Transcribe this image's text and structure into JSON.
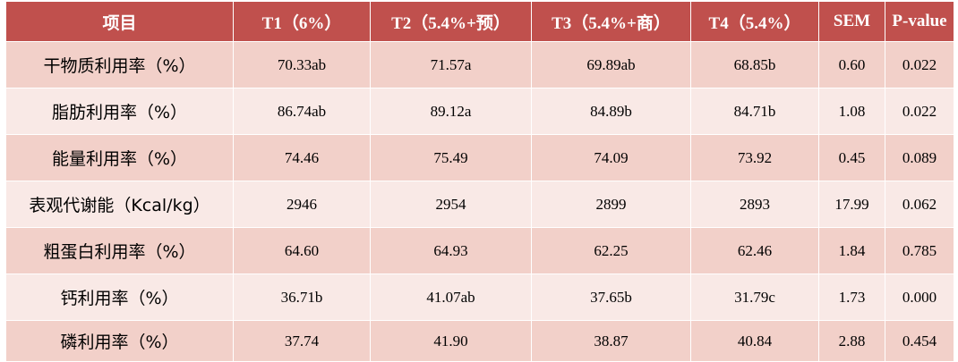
{
  "table": {
    "headers": [
      "项目",
      "T1（6%）",
      "T2（5.4%+预）",
      "T3（5.4%+商）",
      "T4（5.4%）",
      "SEM",
      "P-value"
    ],
    "rows": [
      [
        "干物质利用率（%）",
        "70.33ab",
        "71.57a",
        "69.89ab",
        "68.85b",
        "0.60",
        "0.022"
      ],
      [
        "脂肪利用率（%）",
        "86.74ab",
        "89.12a",
        "84.89b",
        "84.71b",
        "1.08",
        "0.022"
      ],
      [
        "能量利用率（%）",
        "74.46",
        "75.49",
        "74.09",
        "73.92",
        "0.45",
        "0.089"
      ],
      [
        "表观代谢能（Kcal/kg）",
        "2946",
        "2954",
        "2899",
        "2893",
        "17.99",
        "0.062"
      ],
      [
        "粗蛋白利用率（%）",
        "64.60",
        "64.93",
        "62.25",
        "62.46",
        "1.84",
        "0.785"
      ],
      [
        "钙利用率（%）",
        "36.71b",
        "41.07ab",
        "37.65b",
        "31.79c",
        "1.73",
        "0.000"
      ],
      [
        "磷利用率（%）",
        "37.74",
        "41.90",
        "38.87",
        "40.84",
        "2.88",
        "0.454"
      ]
    ]
  },
  "colors": {
    "header_bg": "#c0504d",
    "row_dark": "#f2d0c9",
    "row_light": "#f9e9e6"
  }
}
